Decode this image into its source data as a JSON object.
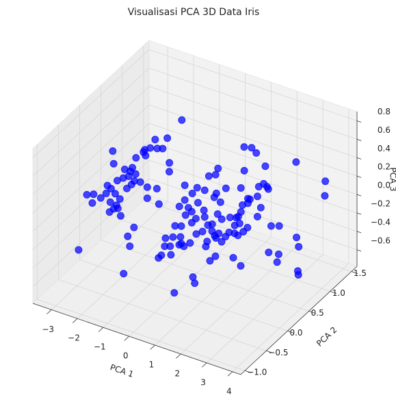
{
  "chart_data": {
    "type": "scatter3d",
    "title": "Visualisasi PCA 3D Data Iris",
    "xlabel": "PCA 1",
    "ylabel": "PCA 2",
    "zlabel": "PCA 3",
    "color": "#0000ff",
    "grid": true,
    "xlim": [
      -3.72,
      4.32
    ],
    "ylim": [
      -1.1,
      1.63
    ],
    "zlim": [
      -0.78,
      0.9
    ],
    "xticks": [
      {
        "value": -3,
        "label": "−3"
      },
      {
        "value": -2,
        "label": "−2"
      },
      {
        "value": -1,
        "label": "−1"
      },
      0,
      1,
      2,
      3,
      4
    ],
    "yticks": [
      {
        "value": -1.0,
        "label": "−1.0"
      },
      {
        "value": -0.5,
        "label": "−0.5"
      },
      {
        "value": 0.0,
        "label": "0.0"
      },
      {
        "value": 0.5,
        "label": "0.5"
      },
      {
        "value": 1.0,
        "label": "1.0"
      },
      {
        "value": 1.5,
        "label": "1.5"
      }
    ],
    "zticks": [
      {
        "value": -0.6,
        "label": "−0.6"
      },
      {
        "value": -0.4,
        "label": "−0.4"
      },
      {
        "value": -0.2,
        "label": "−0.2"
      },
      {
        "value": 0.0,
        "label": "0.0"
      },
      {
        "value": 0.2,
        "label": "0.2"
      },
      {
        "value": 0.4,
        "label": "0.4"
      },
      {
        "value": 0.6,
        "label": "0.6"
      },
      {
        "value": 0.8,
        "label": "0.8"
      }
    ],
    "x": [
      -1.55,
      -2.11,
      -2.58,
      -2.5,
      -2.77,
      -2.98,
      -2.29,
      -3.03,
      -3.32,
      -1.75,
      -2.95,
      -2.42,
      -3.46,
      -2.21,
      -2.03,
      -2.85,
      0.86,
      1.15,
      1.33,
      1.68,
      2.87,
      -0.15,
      -2.27,
      -2.0,
      -2.48,
      -2.05,
      -1.82,
      -2.16,
      -2.71,
      -3.09,
      -1.55,
      -2.95,
      -2.34,
      -2.75,
      -2.49,
      -3.14,
      -2.79,
      -3.35,
      -2.61,
      -2.54,
      -2.98,
      -2.74,
      -2.85,
      -2.69,
      -3.01,
      -1.18,
      -1.55,
      -1.1,
      -0.7,
      -2.58,
      -0.1,
      0.38,
      0.83,
      1.09,
      1.12,
      1.04,
      1.49,
      2.07,
      2.2,
      0.19,
      -0.1,
      0.41,
      0.67,
      1.28,
      0.64,
      0.04,
      -0.31,
      0.17,
      -0.07,
      0.33,
      0.17,
      0.67,
      1.17,
      1.33,
      1.65,
      1.97,
      2.07,
      2.13,
      2.34,
      2.42,
      2.71,
      2.76,
      3.08,
      3.13,
      2.95,
      2.34,
      2.84,
      2.71,
      2.02,
      1.89,
      4.0,
      3.98,
      0.96,
      3.24,
      3.55,
      1.83,
      -0.93,
      -3.07,
      -1.33,
      -1.17,
      -1.09,
      0.9,
      0.66,
      1.93,
      1.72,
      2.35,
      2.61,
      3.3,
      2.96,
      3.46,
      2.24,
      2.46,
      1.9,
      2.19,
      1.48,
      1.85,
      1.24,
      0.9,
      0.82,
      1.0,
      0.58,
      0.29,
      0.26,
      0.47,
      0.87,
      0.13,
      0.02,
      0.5,
      2.22,
      2.01,
      2.91,
      3.2,
      4.28,
      3.53,
      3.47,
      4.22,
      2.97,
      4.27,
      4.29,
      1.35,
      1.42,
      0.63,
      3.09,
      2.09,
      2.75
    ],
    "y": [
      1.08,
      1.08,
      1.08,
      1.08,
      1.08,
      1.08,
      1.08,
      1.08,
      1.08,
      -0.42,
      1.08,
      0.27,
      1.08,
      0.27,
      1.08,
      0.27,
      1.08,
      1.08,
      1.08,
      1.08,
      1.08,
      1.08,
      0.27,
      0.27,
      0.27,
      0.27,
      0.27,
      0.27,
      0.27,
      0.27,
      0.27,
      0.27,
      0.27,
      -0.42,
      -0.42,
      0.27,
      0.27,
      0.27,
      0.27,
      -0.42,
      0.27,
      0.27,
      0.27,
      0.27,
      0.27,
      0.27,
      0.27,
      0.27,
      0.27,
      0.27,
      0.27,
      0.27,
      0.27,
      0.27,
      0.27,
      0.27,
      0.27,
      0.27,
      0.27,
      0.27,
      0.27,
      0.27,
      0.27,
      0.27,
      0.27,
      0.27,
      0.27,
      0.27,
      0.27,
      0.27,
      0.27,
      0.27,
      0.27,
      0.27,
      0.27,
      0.27,
      0.27,
      0.27,
      0.27,
      0.27,
      0.27,
      0.27,
      0.27,
      0.27,
      0.27,
      0.27,
      0.27,
      0.27,
      0.27,
      0.27,
      1.08,
      1.08,
      0.27,
      0.27,
      0.27,
      0.27,
      -0.42,
      -0.42,
      -0.42,
      -0.42,
      -0.42,
      -0.42,
      -0.42,
      -0.42,
      -0.42,
      -0.42,
      -0.42,
      -0.42,
      -0.42,
      -0.42,
      -0.42,
      -0.42,
      -0.42,
      -0.42,
      -0.42,
      -0.42,
      -0.42,
      -0.42,
      -0.42,
      -0.42,
      -0.42,
      -0.42,
      -0.42,
      -0.42,
      -0.42,
      -0.42,
      -0.42,
      -0.42,
      -0.42,
      -0.42,
      -0.42,
      -0.42,
      -0.42,
      0.27,
      0.27,
      0.27,
      1.08,
      0.27,
      0.27,
      -0.42,
      -0.42,
      -0.42,
      -0.42,
      -0.42,
      -0.42
    ],
    "z": [
      0.48,
      0.23,
      0.17,
      0.08,
      0.06,
      0.02,
      0.1,
      -0.01,
      -0.1,
      0.77,
      -0.04,
      0.21,
      -0.22,
      0.21,
      -0.03,
      0.23,
      0.42,
      0.44,
      0.4,
      0.29,
      0.45,
      0.09,
      0.15,
      0.2,
      0.11,
      0.12,
      0.13,
      0.07,
      0.06,
      -0.03,
      0.1,
      -0.05,
      0.01,
      0.2,
      0.23,
      -0.12,
      -0.09,
      -0.19,
      -0.13,
      0.13,
      -0.2,
      -0.21,
      -0.26,
      -0.24,
      -0.31,
      0.12,
      -0.02,
      -0.04,
      0.35,
      -0.31,
      0.26,
      0.28,
      0.45,
      0.49,
      0.29,
      0.24,
      0.38,
      0.44,
      0.64,
      0.2,
      0.1,
      0.12,
      0.28,
      0.21,
      0.06,
      0.03,
      0.01,
      0.0,
      -0.06,
      -0.06,
      -0.12,
      -0.01,
      0.07,
      0.03,
      0.08,
      0.12,
      0.18,
      0.26,
      0.35,
      0.35,
      0.41,
      0.52,
      0.55,
      0.53,
      0.57,
      0.3,
      0.3,
      0.19,
      0.05,
      0.1,
      0.35,
      0.19,
      -0.06,
      0.14,
      0.17,
      0.01,
      0.02,
      -0.43,
      -0.52,
      -0.1,
      -0.2,
      0.21,
      0.19,
      0.32,
      0.23,
      0.27,
      0.26,
      0.38,
      0.33,
      0.44,
      0.21,
      0.19,
      0.14,
      0.23,
      0.18,
      0.08,
      0.06,
      0.02,
      0.0,
      0.0,
      0.06,
      0.02,
      -0.07,
      -0.05,
      0.09,
      -0.18,
      -0.22,
      -0.14,
      0.01,
      -0.06,
      0.06,
      0.0,
      0.25,
      -0.14,
      -0.23,
      0.11,
      -0.46,
      -0.25,
      -0.29,
      -0.3,
      -0.36,
      -0.54,
      0.32,
      0.27,
      0.32
    ]
  }
}
